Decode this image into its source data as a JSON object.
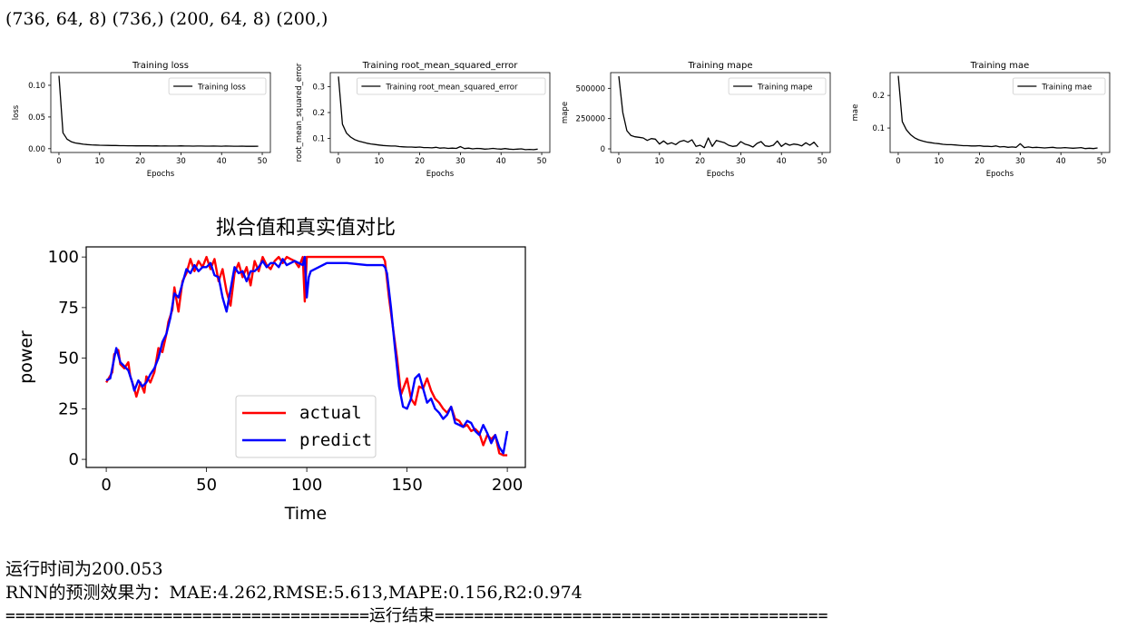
{
  "output": {
    "shape_line": "(736, 64, 8) (736,) (200, 64, 8) (200,)",
    "runtime_line": "运行时间为200.053",
    "metrics_line": "RNN的预测效果为：MAE:4.262,RMSE:5.613,MAPE:0.156,R2:0.974",
    "end_line": "=====================================运行结束========================================"
  },
  "colors": {
    "line_black": "#000000",
    "actual": "#ff0000",
    "predict": "#0000ff"
  },
  "chart_data": [
    {
      "type": "line",
      "title": "Training loss",
      "xlabel": "Epochs",
      "ylabel": "loss",
      "xlim": [
        -2,
        52
      ],
      "ylim": [
        -0.006,
        0.12
      ],
      "xticks": [
        0,
        10,
        20,
        30,
        40,
        50
      ],
      "yticks": [
        0.0,
        0.05,
        0.1
      ],
      "ytick_labels": [
        "0.00",
        "0.05",
        "0.10"
      ],
      "legend": "upper right",
      "series": [
        {
          "name": "Training loss",
          "color": "#000000",
          "values": [
            0.115,
            0.025,
            0.015,
            0.011,
            0.009,
            0.008,
            0.007,
            0.0065,
            0.006,
            0.0058,
            0.0055,
            0.0053,
            0.0052,
            0.005,
            0.005,
            0.0048,
            0.0047,
            0.0046,
            0.0046,
            0.0045,
            0.0045,
            0.0044,
            0.0044,
            0.0043,
            0.0044,
            0.0042,
            0.0043,
            0.0042,
            0.0042,
            0.0041,
            0.0045,
            0.0041,
            0.0042,
            0.004,
            0.0041,
            0.0041,
            0.004,
            0.004,
            0.0041,
            0.004,
            0.0039,
            0.0041,
            0.004,
            0.0039,
            0.0039,
            0.004,
            0.0038,
            0.0039,
            0.0038,
            0.0039
          ]
        }
      ]
    },
    {
      "type": "line",
      "title": "Training root_mean_squared_error",
      "xlabel": "Epochs",
      "ylabel": "root_mean_squared_error",
      "xlim": [
        -2,
        52
      ],
      "ylim": [
        0.045,
        0.355
      ],
      "xticks": [
        0,
        10,
        20,
        30,
        40,
        50
      ],
      "yticks": [
        0.1,
        0.2,
        0.3
      ],
      "ytick_labels": [
        "0.1",
        "0.2",
        "0.3"
      ],
      "legend": "upper right",
      "series": [
        {
          "name": "Training root_mean_squared_error",
          "color": "#000000",
          "values": [
            0.34,
            0.155,
            0.12,
            0.105,
            0.095,
            0.089,
            0.085,
            0.081,
            0.078,
            0.076,
            0.074,
            0.072,
            0.071,
            0.07,
            0.07,
            0.068,
            0.067,
            0.066,
            0.066,
            0.065,
            0.066,
            0.064,
            0.064,
            0.063,
            0.065,
            0.062,
            0.063,
            0.061,
            0.062,
            0.061,
            0.068,
            0.06,
            0.062,
            0.059,
            0.061,
            0.06,
            0.058,
            0.059,
            0.061,
            0.059,
            0.058,
            0.06,
            0.058,
            0.057,
            0.058,
            0.059,
            0.056,
            0.057,
            0.056,
            0.058
          ]
        }
      ]
    },
    {
      "type": "line",
      "title": "Training mape",
      "xlabel": "Epochs",
      "ylabel": "mape",
      "xlim": [
        -2,
        52
      ],
      "ylim": [
        -30000,
        630000
      ],
      "xticks": [
        0,
        10,
        20,
        30,
        40,
        50
      ],
      "yticks": [
        0,
        250000,
        500000
      ],
      "ytick_labels": [
        "0",
        "250000",
        "500000"
      ],
      "legend": "upper right",
      "series": [
        {
          "name": "Training mape",
          "color": "#000000",
          "values": [
            600000,
            300000,
            150000,
            110000,
            100000,
            95000,
            90000,
            70000,
            85000,
            80000,
            40000,
            65000,
            40000,
            50000,
            35000,
            60000,
            70000,
            55000,
            75000,
            20000,
            30000,
            10000,
            90000,
            20000,
            70000,
            60000,
            50000,
            30000,
            20000,
            25000,
            60000,
            40000,
            30000,
            15000,
            45000,
            60000,
            25000,
            20000,
            30000,
            65000,
            20000,
            45000,
            30000,
            40000,
            35000,
            25000,
            50000,
            30000,
            55000,
            15000
          ]
        }
      ]
    },
    {
      "type": "line",
      "title": "Training mae",
      "xlabel": "Epochs",
      "ylabel": "mae",
      "xlim": [
        -2,
        52
      ],
      "ylim": [
        0.025,
        0.27
      ],
      "xticks": [
        0,
        10,
        20,
        30,
        40,
        50
      ],
      "yticks": [
        0.1,
        0.2
      ],
      "ytick_labels": [
        "0.1",
        "0.2"
      ],
      "legend": "upper right",
      "series": [
        {
          "name": "Training mae",
          "color": "#000000",
          "values": [
            0.26,
            0.12,
            0.095,
            0.08,
            0.07,
            0.064,
            0.06,
            0.057,
            0.055,
            0.053,
            0.052,
            0.05,
            0.049,
            0.049,
            0.048,
            0.047,
            0.046,
            0.046,
            0.045,
            0.045,
            0.046,
            0.044,
            0.044,
            0.043,
            0.045,
            0.042,
            0.043,
            0.041,
            0.042,
            0.041,
            0.052,
            0.04,
            0.042,
            0.04,
            0.041,
            0.04,
            0.039,
            0.04,
            0.041,
            0.039,
            0.039,
            0.04,
            0.039,
            0.038,
            0.039,
            0.04,
            0.037,
            0.038,
            0.037,
            0.039
          ]
        }
      ]
    },
    {
      "type": "line",
      "title": "拟合值和真实值对比",
      "xlabel": "Time",
      "ylabel": "power",
      "xlim": [
        -10,
        209
      ],
      "ylim": [
        -4,
        105
      ],
      "xticks": [
        0,
        50,
        100,
        150,
        200
      ],
      "yticks": [
        0,
        25,
        50,
        75,
        100
      ],
      "legend": "lower center",
      "series": [
        {
          "name": "actual",
          "color": "#ff0000",
          "x": [
            0,
            3,
            4,
            6,
            7,
            9,
            11,
            12,
            14,
            15,
            17,
            19,
            20,
            22,
            24,
            26,
            28,
            30,
            31,
            33,
            34,
            36,
            38,
            40,
            42,
            44,
            46,
            48,
            50,
            52,
            54,
            56,
            58,
            60,
            62,
            64,
            66,
            68,
            70,
            72,
            74,
            76,
            78,
            80,
            82,
            84,
            86,
            88,
            90,
            92,
            94,
            96,
            98,
            99,
            100,
            102,
            110,
            120,
            130,
            138,
            139,
            141,
            143,
            145,
            147,
            150,
            152,
            154,
            156,
            158,
            160,
            162,
            164,
            166,
            168,
            170,
            172,
            174,
            176,
            178,
            180,
            182,
            184,
            186,
            188,
            190,
            192,
            194,
            196,
            198,
            200
          ],
          "y": [
            38,
            43,
            52,
            54,
            47,
            45,
            48,
            41,
            35,
            31,
            38,
            33,
            41,
            38,
            43,
            55,
            53,
            62,
            68,
            74,
            85,
            73,
            88,
            92,
            99,
            93,
            98,
            95,
            100,
            94,
            99,
            88,
            94,
            83,
            76,
            92,
            97,
            90,
            95,
            86,
            98,
            93,
            100,
            96,
            94,
            98,
            100,
            97,
            100,
            99,
            98,
            95,
            100,
            78,
            100,
            100,
            100,
            100,
            100,
            100,
            98,
            80,
            65,
            50,
            32,
            40,
            30,
            27,
            36,
            35,
            40,
            34,
            30,
            28,
            25,
            23,
            26,
            20,
            19,
            16,
            17,
            14,
            15,
            13,
            7,
            12,
            10,
            12,
            3,
            2,
            2
          ]
        },
        {
          "name": "predict",
          "color": "#0000ff",
          "x": [
            0,
            2,
            4,
            5,
            7,
            9,
            11,
            13,
            14,
            16,
            18,
            20,
            22,
            24,
            26,
            28,
            30,
            32,
            34,
            36,
            38,
            40,
            42,
            44,
            46,
            48,
            50,
            52,
            54,
            56,
            58,
            60,
            62,
            64,
            66,
            68,
            70,
            72,
            74,
            76,
            78,
            80,
            82,
            84,
            86,
            88,
            90,
            92,
            94,
            96,
            98,
            99,
            100,
            101,
            102,
            110,
            120,
            130,
            138,
            139,
            140,
            142,
            144,
            146,
            148,
            150,
            152,
            154,
            156,
            158,
            160,
            162,
            164,
            166,
            168,
            170,
            172,
            174,
            176,
            178,
            180,
            182,
            184,
            186,
            188,
            190,
            192,
            194,
            196,
            198,
            200
          ],
          "y": [
            39,
            40,
            50,
            55,
            48,
            46,
            44,
            38,
            34,
            39,
            36,
            38,
            42,
            45,
            50,
            58,
            62,
            70,
            82,
            80,
            87,
            94,
            92,
            96,
            93,
            95,
            95,
            97,
            91,
            90,
            80,
            73,
            84,
            95,
            92,
            93,
            88,
            93,
            93,
            95,
            98,
            95,
            97,
            97,
            95,
            99,
            96,
            97,
            98,
            97,
            96,
            100,
            80,
            90,
            93,
            97,
            97,
            96,
            96,
            95,
            92,
            75,
            55,
            36,
            26,
            25,
            30,
            40,
            42,
            35,
            28,
            30,
            25,
            23,
            20,
            22,
            26,
            18,
            17,
            16,
            19,
            18,
            14,
            12,
            17,
            13,
            8,
            12,
            6,
            3,
            14
          ]
        }
      ]
    }
  ]
}
